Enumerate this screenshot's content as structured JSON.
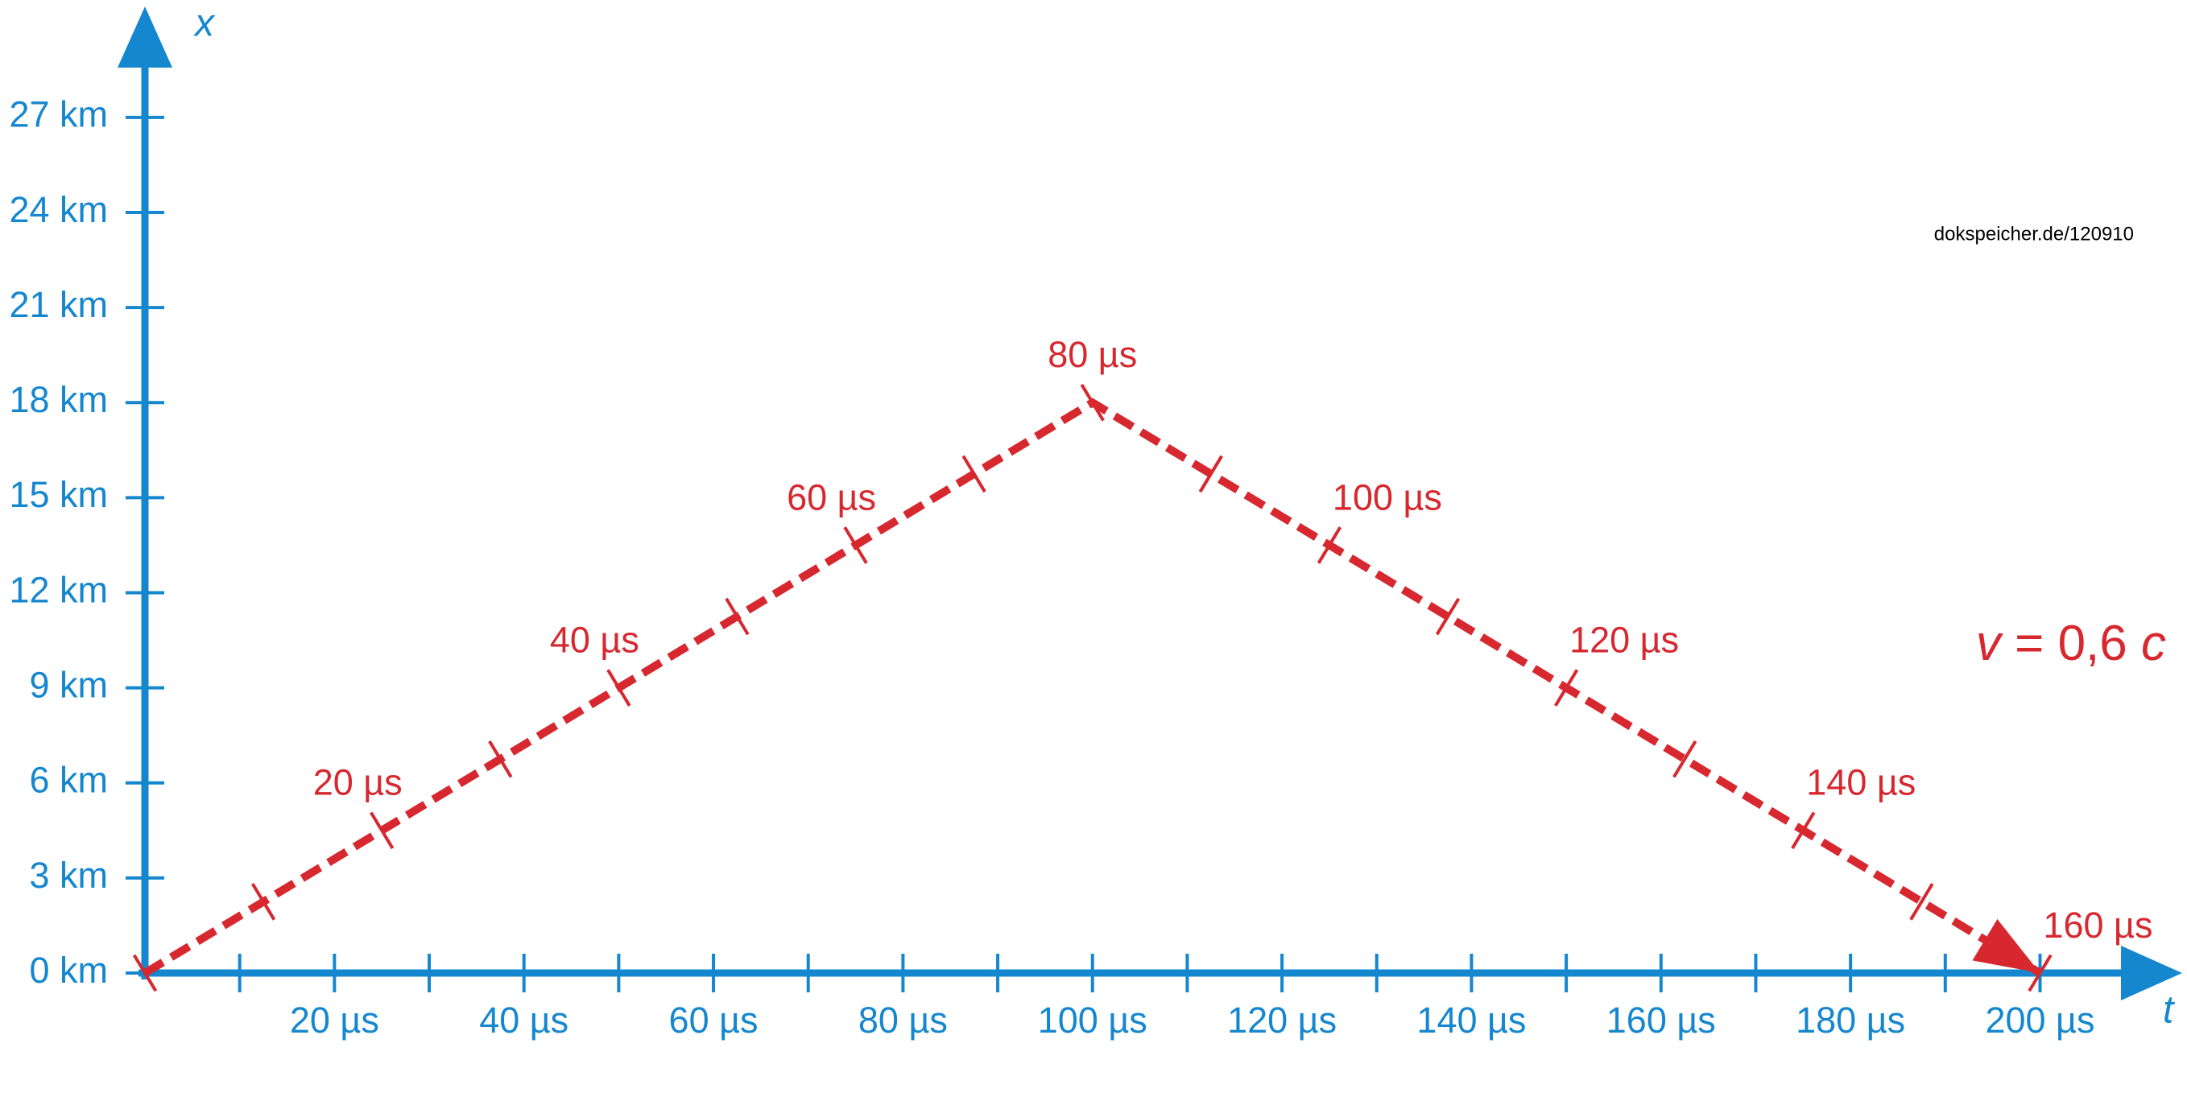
{
  "chart_data": {
    "type": "line",
    "x_axis_label": "t",
    "y_axis_label": "x",
    "watermark": "dokspeicher.de/120910",
    "velocity_label": [
      "v",
      " = 0,6 ",
      "c"
    ],
    "axis_color": "#1587cf",
    "xlim": [
      0,
      215
    ],
    "ylim": [
      0,
      30.5
    ],
    "xticks": [
      {
        "value": 20,
        "label": "20 µs"
      },
      {
        "value": 40,
        "label": "40 µs"
      },
      {
        "value": 60,
        "label": "60 µs"
      },
      {
        "value": 80,
        "label": "80 µs"
      },
      {
        "value": 100,
        "label": "100 µs"
      },
      {
        "value": 120,
        "label": "120 µs"
      },
      {
        "value": 140,
        "label": "140 µs"
      },
      {
        "value": 160,
        "label": "160 µs"
      },
      {
        "value": 180,
        "label": "180 µs"
      },
      {
        "value": 200,
        "label": "200 µs"
      }
    ],
    "x_minor_ticks": [
      10,
      30,
      50,
      70,
      90,
      110,
      130,
      150,
      170,
      190
    ],
    "yticks": [
      {
        "value": 0,
        "label": "0 km"
      },
      {
        "value": 3,
        "label": "3 km"
      },
      {
        "value": 6,
        "label": "6 km"
      },
      {
        "value": 9,
        "label": "9 km"
      },
      {
        "value": 12,
        "label": "12 km"
      },
      {
        "value": 15,
        "label": "15 km"
      },
      {
        "value": 18,
        "label": "18 km"
      },
      {
        "value": 21,
        "label": "21 km"
      },
      {
        "value": 24,
        "label": "24 km"
      },
      {
        "value": 27,
        "label": "27 km"
      }
    ],
    "x": [
      0,
      100,
      200
    ],
    "series": [
      {
        "color": "#d7282f",
        "values": [
          0,
          18,
          0
        ]
      }
    ],
    "proper_time_marks": {
      "t": [
        0,
        12.5,
        25,
        37.5,
        50,
        62.5,
        75,
        87.5,
        100,
        112.5,
        125,
        137.5,
        150,
        162.5,
        175,
        187.5,
        200
      ],
      "x": [
        0,
        2.25,
        4.5,
        6.75,
        9,
        11.25,
        13.5,
        15.75,
        18,
        15.75,
        13.5,
        11.25,
        9,
        6.75,
        4.5,
        2.25,
        0
      ],
      "labels": [
        null,
        null,
        "20 µs",
        null,
        "40 µs",
        null,
        "60 µs",
        null,
        "80 µs",
        null,
        "100 µs",
        null,
        "120 µs",
        null,
        "140 µs",
        null,
        "160 µs"
      ]
    }
  }
}
